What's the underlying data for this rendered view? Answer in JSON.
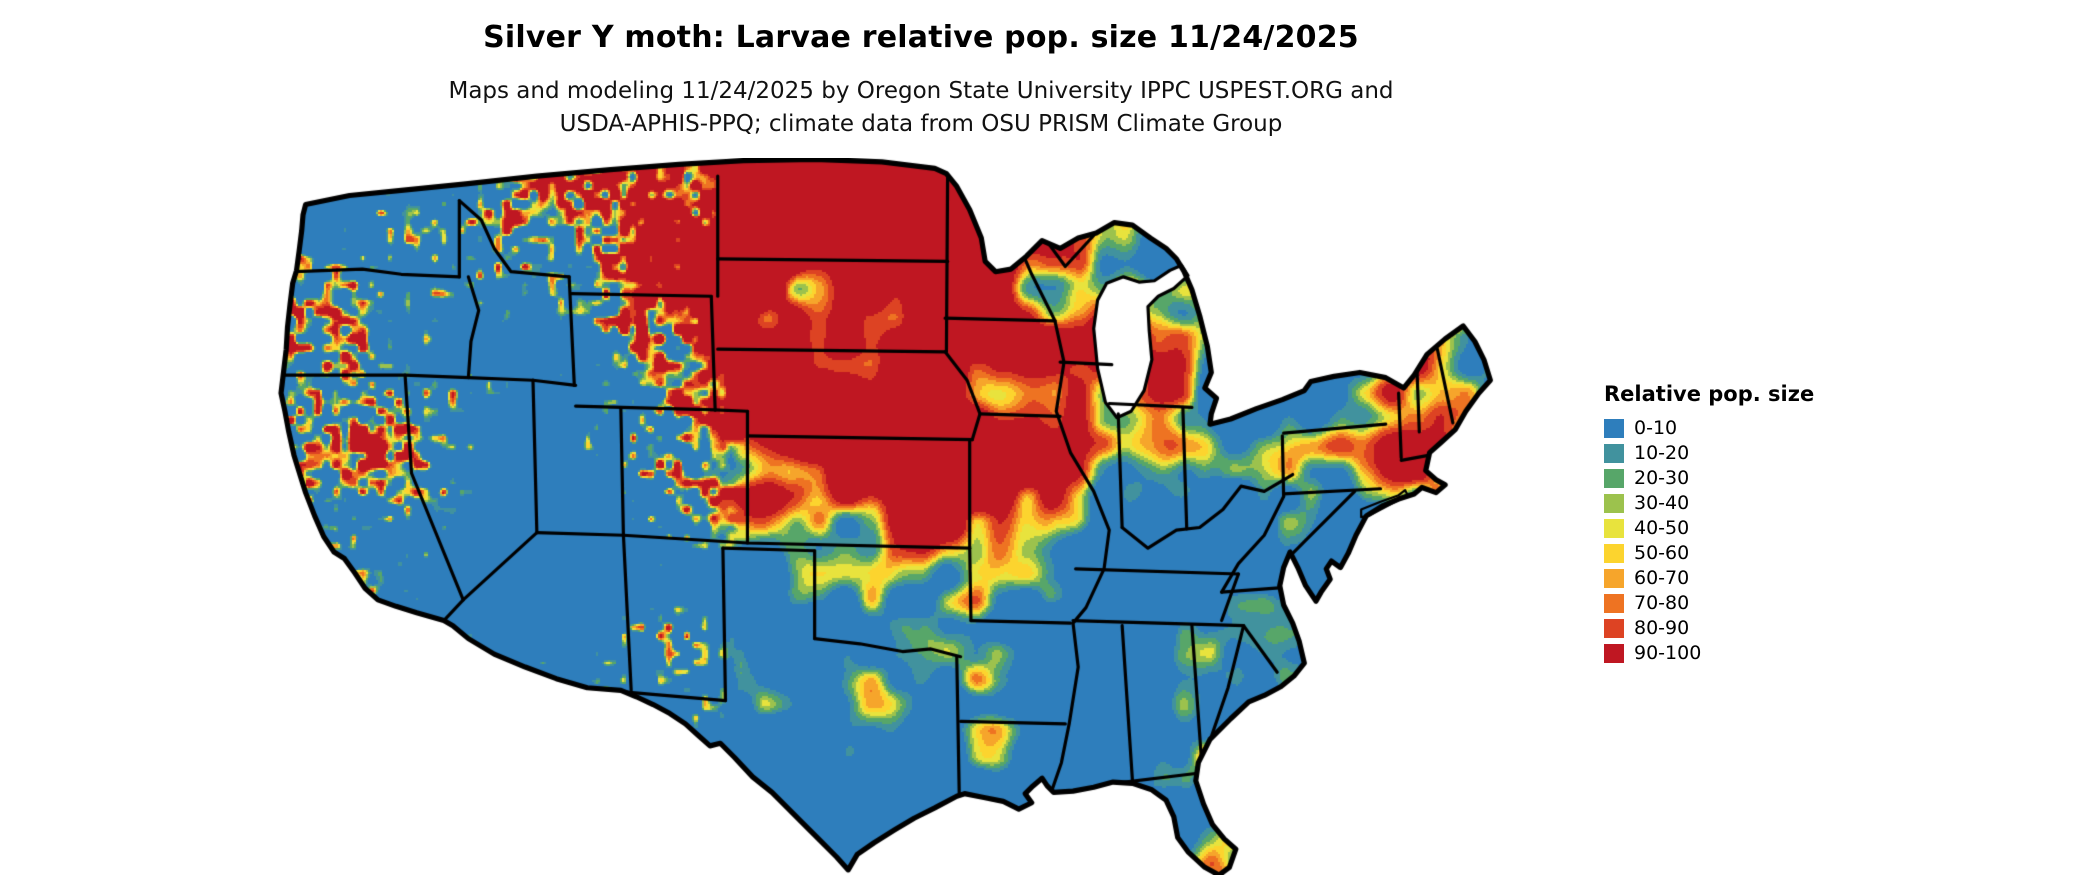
{
  "header": {
    "title": "Silver Y moth: Larvae relative pop. size 11/24/2025",
    "subtitle_line1": "Maps and modeling 11/24/2025 by Oregon State University IPPC USPEST.ORG and",
    "subtitle_line2": "USDA-APHIS-PPQ; climate data from OSU PRISM Climate Group"
  },
  "legend": {
    "title": "Relative pop. size",
    "items": [
      {
        "label": "0-10",
        "color": "#2e7ebc"
      },
      {
        "label": "10-20",
        "color": "#41929e"
      },
      {
        "label": "20-30",
        "color": "#57a669"
      },
      {
        "label": "30-40",
        "color": "#9cc24d"
      },
      {
        "label": "40-50",
        "color": "#e8e33d"
      },
      {
        "label": "50-60",
        "color": "#fcd42e"
      },
      {
        "label": "60-70",
        "color": "#f6a52b"
      },
      {
        "label": "70-80",
        "color": "#ee7322"
      },
      {
        "label": "80-90",
        "color": "#dd4323"
      },
      {
        "label": "90-100",
        "color": "#bf1722"
      }
    ]
  }
}
